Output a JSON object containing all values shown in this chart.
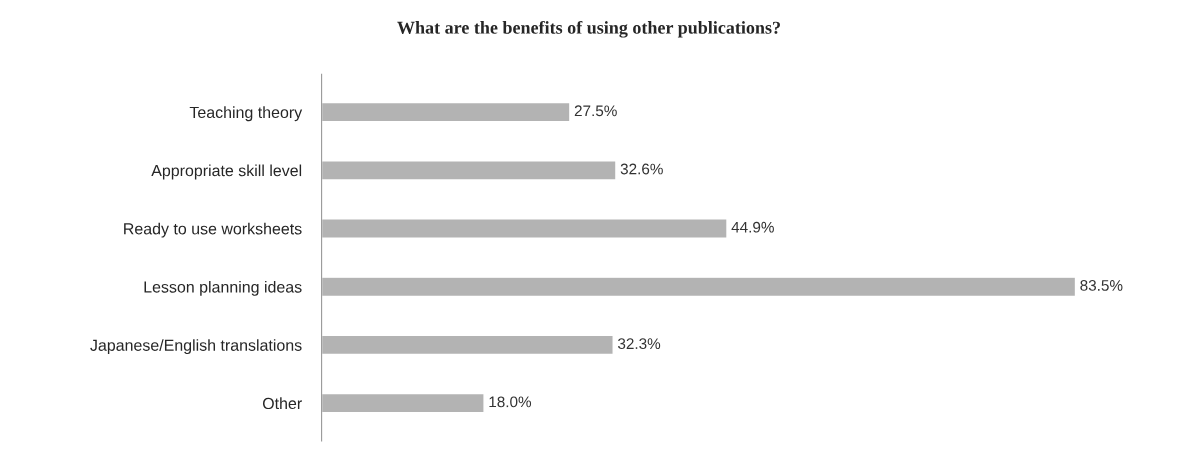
{
  "chart_data": {
    "type": "bar",
    "orientation": "horizontal",
    "title": "What are the benefits of using other publications?",
    "categories": [
      "Teaching theory",
      "Appropriate skill level",
      "Ready to use worksheets",
      "Lesson planning ideas",
      "Japanese/English translations",
      "Other"
    ],
    "values": [
      27.5,
      32.6,
      44.9,
      83.5,
      32.3,
      18.0
    ],
    "value_labels": [
      "27.5%",
      "32.6%",
      "44.9%",
      "83.5%",
      "32.3%",
      "18.0%"
    ],
    "color": "#b3b3b3",
    "grid": false,
    "legend": false
  }
}
